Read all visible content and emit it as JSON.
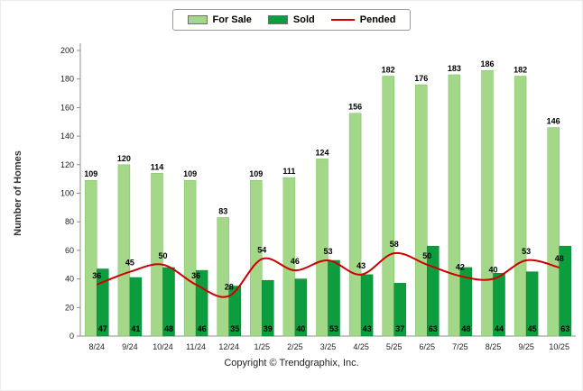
{
  "chart_data": {
    "type": "bar",
    "title": "",
    "categories": [
      "8/24",
      "9/24",
      "10/24",
      "11/24",
      "12/24",
      "1/25",
      "2/25",
      "3/25",
      "4/25",
      "5/25",
      "6/25",
      "7/25",
      "8/25",
      "9/25",
      "10/25"
    ],
    "series": [
      {
        "name": "For Sale",
        "type": "bar",
        "color": "#a2d887",
        "border_color": "#7dbd60",
        "values": [
          109,
          120,
          114,
          109,
          83,
          109,
          111,
          124,
          156,
          182,
          176,
          183,
          186,
          182,
          146
        ]
      },
      {
        "name": "Sold",
        "type": "bar",
        "color": "#0c9e3e",
        "border_color": "#077f31",
        "values": [
          47,
          41,
          48,
          46,
          35,
          39,
          40,
          53,
          43,
          37,
          63,
          48,
          44,
          45,
          63
        ]
      },
      {
        "name": "Pended",
        "type": "line",
        "color": "#cc0000",
        "values": [
          36,
          45,
          50,
          36,
          28,
          54,
          46,
          53,
          43,
          58,
          50,
          42,
          40,
          53,
          48
        ]
      }
    ],
    "xlabel": "",
    "ylabel": "Number of Homes",
    "ylim": [
      0,
      200
    ],
    "ytick_step": 20,
    "grid": false,
    "legend_position": "top"
  },
  "footer": {
    "copyright": "Copyright © Trendgraphix, Inc."
  }
}
